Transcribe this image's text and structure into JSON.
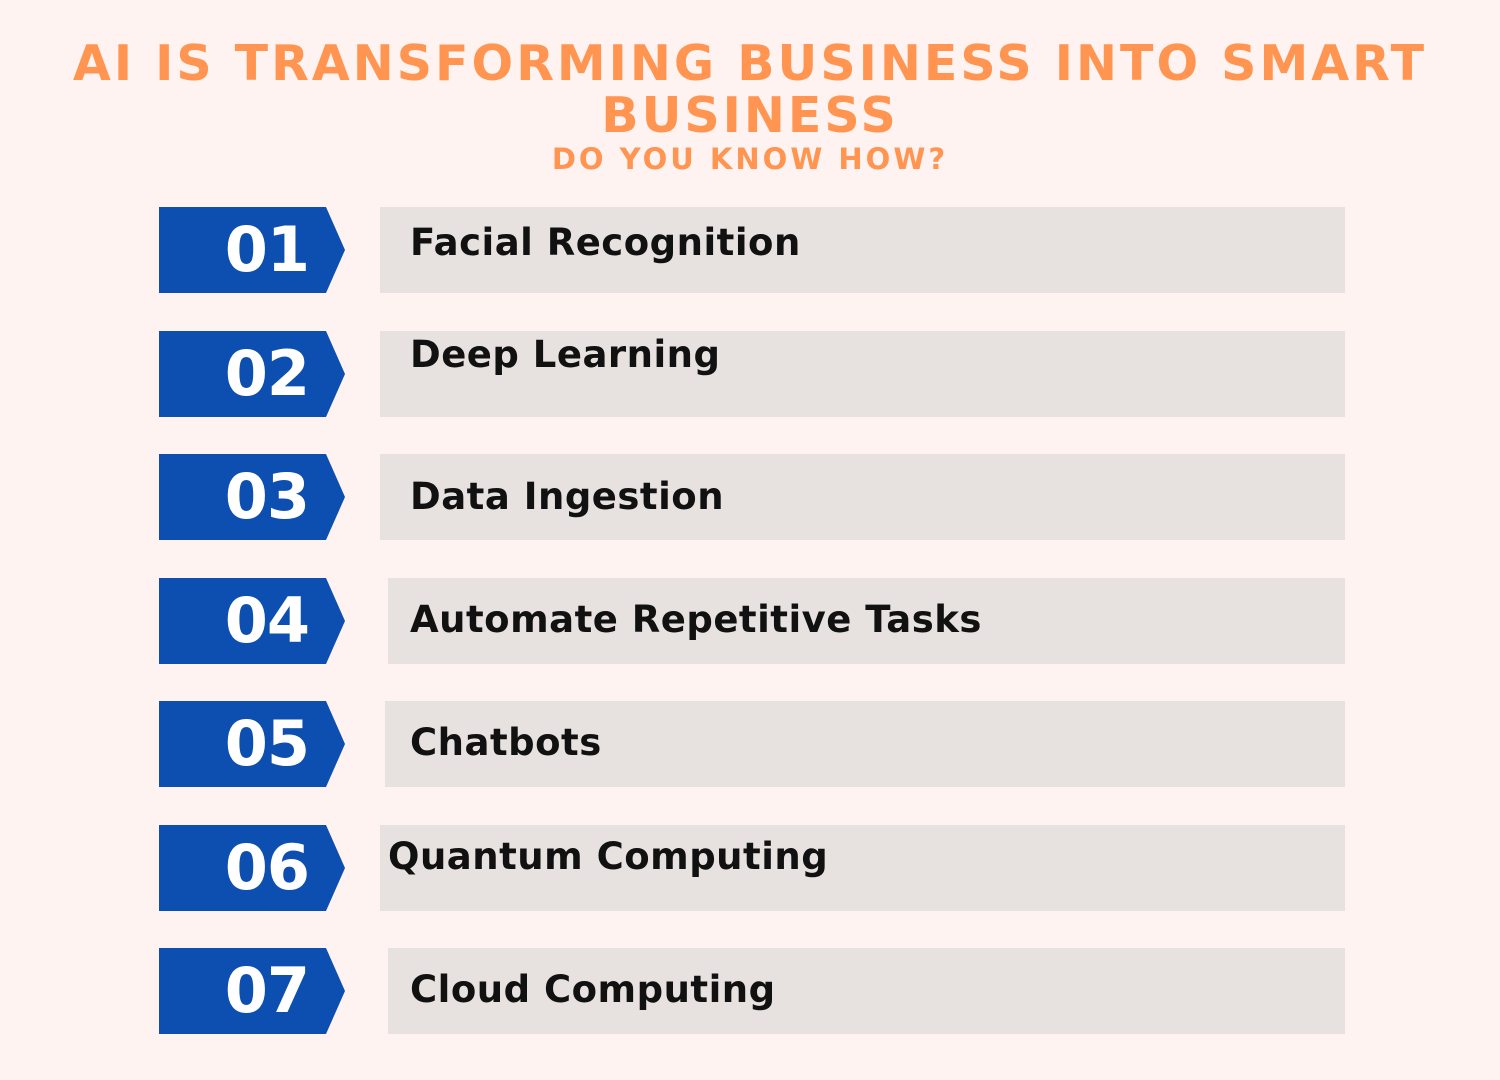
{
  "header": {
    "title": "AI IS TRANSFORMING BUSINESS INTO SMART BUSINESS",
    "subtitle": "DO YOU KNOW HOW?"
  },
  "items": [
    {
      "number": "01",
      "label": "Facial Recognition"
    },
    {
      "number": "02",
      "label": "Deep Learning"
    },
    {
      "number": "03",
      "label": "Data Ingestion"
    },
    {
      "number": "04",
      "label": "Automate Repetitive Tasks"
    },
    {
      "number": "05",
      "label": "Chatbots"
    },
    {
      "number": "06",
      "label": "Quantum Computing"
    },
    {
      "number": "07",
      "label": "Cloud Computing"
    }
  ],
  "colors": {
    "background": "#fff3f2",
    "accent": "#ff9551",
    "badge": "#0d4fb0",
    "bar": "#e7e1df",
    "text": "#111111"
  }
}
